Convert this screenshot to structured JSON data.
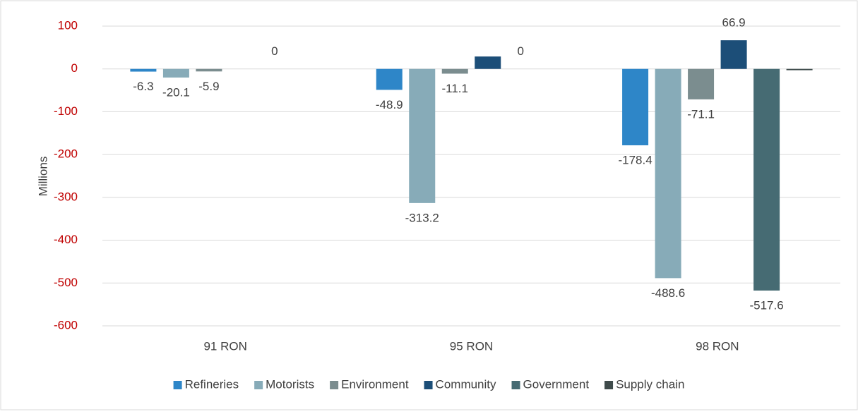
{
  "chart_data": {
    "type": "bar",
    "y_axis_label": "Millions",
    "categories": [
      "91 RON",
      "95 RON",
      "98 RON"
    ],
    "series": [
      {
        "name": "Refineries",
        "color": "#2e86c8",
        "values": [
          -6.3,
          -48.9,
          -178.4
        ],
        "value_labels": [
          "-6.3",
          "-48.9",
          "-178.4"
        ]
      },
      {
        "name": "Motorists",
        "color": "#87abb8",
        "values": [
          -20.1,
          -313.2,
          -488.6
        ],
        "value_labels": [
          "-20.1",
          "-313.2",
          "-488.6"
        ]
      },
      {
        "name": "Environment",
        "color": "#7b8d8f",
        "values": [
          -5.9,
          -11.1,
          -71.1
        ],
        "value_labels": [
          "-5.9",
          "-11.1",
          "-71.1"
        ]
      },
      {
        "name": "Community",
        "color": "#1c4e78",
        "values": [
          null,
          29,
          66.9
        ],
        "value_labels": [
          null,
          null,
          "66.9"
        ]
      },
      {
        "name": "Government",
        "color": "#466b73",
        "values": [
          0,
          0,
          -517.6
        ],
        "value_labels": [
          "0",
          "0",
          "-517.6"
        ]
      },
      {
        "name": "Supply chain",
        "color": "#3f4b4b",
        "values": [
          null,
          null,
          -3
        ],
        "value_labels": [
          null,
          null,
          null
        ]
      }
    ],
    "ylim": [
      -600,
      100
    ],
    "yticks": [
      -600,
      -500,
      -400,
      -300,
      -200,
      -100,
      0,
      100
    ],
    "grid": true,
    "legend": "bottom"
  }
}
